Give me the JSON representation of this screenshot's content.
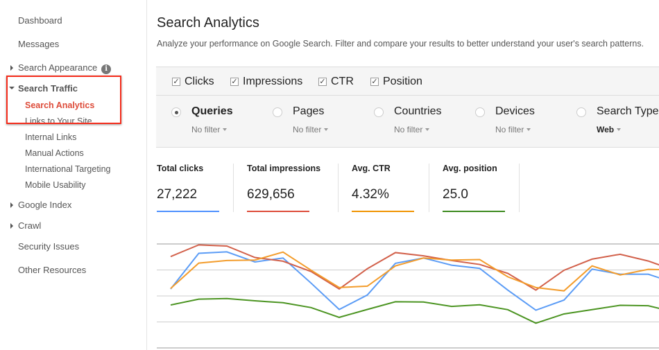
{
  "sidebar": {
    "items": [
      {
        "label": "Dashboard"
      },
      {
        "label": "Messages"
      },
      {
        "label": "Search Appearance",
        "info_icon": "info-icon"
      },
      {
        "label": "Search Traffic",
        "expanded": true
      },
      {
        "label": "Search Analytics",
        "active": true
      },
      {
        "label": "Links to Your Site"
      },
      {
        "label": "Internal Links"
      },
      {
        "label": "Manual Actions"
      },
      {
        "label": "International Targeting"
      },
      {
        "label": "Mobile Usability"
      },
      {
        "label": "Google Index"
      },
      {
        "label": "Crawl"
      },
      {
        "label": "Security Issues"
      },
      {
        "label": "Other Resources"
      }
    ]
  },
  "header": {
    "title": "Search Analytics",
    "description": "Analyze your performance on Google Search. Filter and compare your results to better understand your user's search patterns."
  },
  "metrics": [
    {
      "label": "Clicks",
      "checked": true
    },
    {
      "label": "Impressions",
      "checked": true
    },
    {
      "label": "CTR",
      "checked": true
    },
    {
      "label": "Position",
      "checked": true
    }
  ],
  "dimensions": [
    {
      "label": "Queries",
      "filter": "No filter",
      "selected": true
    },
    {
      "label": "Pages",
      "filter": "No filter"
    },
    {
      "label": "Countries",
      "filter": "No filter"
    },
    {
      "label": "Devices",
      "filter": "No filter"
    },
    {
      "label": "Search Type",
      "filter": "Web"
    }
  ],
  "totals": [
    {
      "label": "Total clicks",
      "value": "27,222",
      "color": "#4d90fe"
    },
    {
      "label": "Total impressions",
      "value": "629,656",
      "color": "#dd4b39"
    },
    {
      "label": "Avg. CTR",
      "value": "4.32%",
      "color": "#f09300"
    },
    {
      "label": "Avg. position",
      "value": "25.0",
      "color": "#3c8a1e"
    }
  ],
  "chart_data": {
    "type": "line",
    "grid": true,
    "ylim": [
      0,
      100
    ],
    "series": [
      {
        "name": "Clicks",
        "color": "#5b9cf6",
        "values": [
          56.7,
          91,
          92.4,
          82.7,
          86.5,
          62.3,
          37,
          50.9,
          81.4,
          86.5,
          79.6,
          76.5,
          55.6,
          36.3,
          46,
          75.8,
          70.9,
          70.9,
          62
        ]
      },
      {
        "name": "Impressions",
        "color": "#d2604a",
        "values": [
          87.9,
          99.1,
          98,
          87,
          83.4,
          73.5,
          56.7,
          76.2,
          91.7,
          88.6,
          84.1,
          80.3,
          71.7,
          55.6,
          74.7,
          85.4,
          90.1,
          83.6,
          74
        ]
      },
      {
        "name": "CTR",
        "color": "#f39c2b",
        "values": [
          57.2,
          81.6,
          84.1,
          84.5,
          92.2,
          74.7,
          58.1,
          59.4,
          78.9,
          86.5,
          84.5,
          85,
          68.4,
          58.1,
          54.9,
          78.9,
          70.2,
          75.6,
          75
        ]
      },
      {
        "name": "Position",
        "color": "#4b9421",
        "values": [
          41.3,
          46.9,
          47.5,
          45.3,
          43.5,
          38.8,
          29.4,
          37,
          44.4,
          44.2,
          39.9,
          41.5,
          36.8,
          23.8,
          32.7,
          36.8,
          41,
          40.6,
          34
        ]
      }
    ]
  }
}
